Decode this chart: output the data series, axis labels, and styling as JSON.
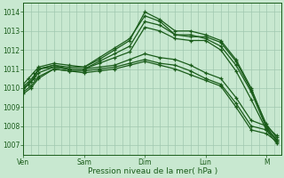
{
  "background_color": "#c8e8d0",
  "grid_color": "#a0c8b0",
  "line_color": "#1a5c1a",
  "marker_color": "#1a5c1a",
  "title": "Pression niveau de la mer( hPa )",
  "xlabel_days": [
    "Ven",
    "Sam",
    "Dim",
    "Lun",
    "M"
  ],
  "ylim": [
    1006.5,
    1014.5
  ],
  "yticks": [
    1007,
    1008,
    1009,
    1010,
    1011,
    1012,
    1013,
    1014
  ],
  "x_day_positions": [
    0,
    24,
    48,
    72,
    96
  ],
  "total_hours": 102,
  "series": [
    {
      "x": [
        0,
        2,
        4,
        6,
        12,
        18,
        24,
        30,
        36,
        42,
        48,
        54,
        60,
        66,
        72,
        78,
        84,
        90,
        96,
        100
      ],
      "y": [
        1010.0,
        1010.2,
        1010.5,
        1011.0,
        1011.2,
        1011.1,
        1011.1,
        1011.5,
        1012.0,
        1012.5,
        1014.0,
        1013.6,
        1013.0,
        1013.0,
        1012.8,
        1012.5,
        1011.5,
        1010.0,
        1008.0,
        1007.2
      ]
    },
    {
      "x": [
        0,
        2,
        4,
        6,
        12,
        18,
        24,
        30,
        36,
        42,
        48,
        54,
        60,
        66,
        72,
        78,
        84,
        90,
        96,
        100
      ],
      "y": [
        1010.1,
        1010.3,
        1010.6,
        1011.0,
        1011.1,
        1011.0,
        1011.0,
        1011.4,
        1011.8,
        1012.2,
        1013.5,
        1013.3,
        1012.8,
        1012.8,
        1012.6,
        1012.2,
        1011.2,
        1009.8,
        1007.9,
        1007.3
      ]
    },
    {
      "x": [
        0,
        2,
        4,
        6,
        12,
        18,
        24,
        30,
        36,
        42,
        48,
        54,
        60,
        66,
        72,
        78,
        84,
        90,
        96,
        100
      ],
      "y": [
        1010.2,
        1010.5,
        1010.8,
        1011.1,
        1011.3,
        1011.2,
        1011.1,
        1011.6,
        1012.1,
        1012.6,
        1013.8,
        1013.5,
        1012.8,
        1012.7,
        1012.7,
        1012.4,
        1011.4,
        1009.9,
        1008.1,
        1007.4
      ]
    },
    {
      "x": [
        0,
        2,
        4,
        6,
        12,
        18,
        24,
        30,
        36,
        42,
        48,
        54,
        60,
        66,
        72,
        78,
        84,
        90,
        96,
        100
      ],
      "y": [
        1009.9,
        1010.2,
        1010.5,
        1011.0,
        1011.2,
        1011.0,
        1011.0,
        1011.3,
        1011.6,
        1011.9,
        1013.2,
        1013.0,
        1012.6,
        1012.5,
        1012.5,
        1012.0,
        1010.9,
        1009.4,
        1007.8,
        1007.1
      ]
    },
    {
      "x": [
        0,
        3,
        6,
        12,
        18,
        24,
        30,
        36,
        42,
        48,
        54,
        60,
        66,
        72,
        78,
        84,
        90,
        96,
        100
      ],
      "y": [
        1010.0,
        1010.3,
        1010.8,
        1011.1,
        1011.0,
        1011.0,
        1011.1,
        1011.2,
        1011.5,
        1011.8,
        1011.6,
        1011.5,
        1011.2,
        1010.8,
        1010.5,
        1009.5,
        1008.3,
        1008.0,
        1007.5
      ]
    },
    {
      "x": [
        0,
        3,
        6,
        12,
        18,
        24,
        30,
        36,
        42,
        48,
        54,
        60,
        66,
        72,
        78,
        84,
        90,
        96,
        100
      ],
      "y": [
        1009.8,
        1010.1,
        1010.6,
        1011.0,
        1010.9,
        1010.9,
        1011.0,
        1011.1,
        1011.3,
        1011.5,
        1011.3,
        1011.2,
        1010.9,
        1010.5,
        1010.2,
        1009.2,
        1008.0,
        1007.8,
        1007.3
      ]
    },
    {
      "x": [
        0,
        3,
        6,
        12,
        18,
        24,
        30,
        36,
        42,
        48,
        54,
        60,
        66,
        72,
        78,
        84,
        90,
        96,
        100
      ],
      "y": [
        1009.7,
        1010.0,
        1010.5,
        1011.0,
        1010.9,
        1010.8,
        1010.9,
        1011.0,
        1011.2,
        1011.4,
        1011.2,
        1011.0,
        1010.7,
        1010.4,
        1010.1,
        1009.0,
        1007.8,
        1007.6,
        1007.2
      ]
    }
  ]
}
